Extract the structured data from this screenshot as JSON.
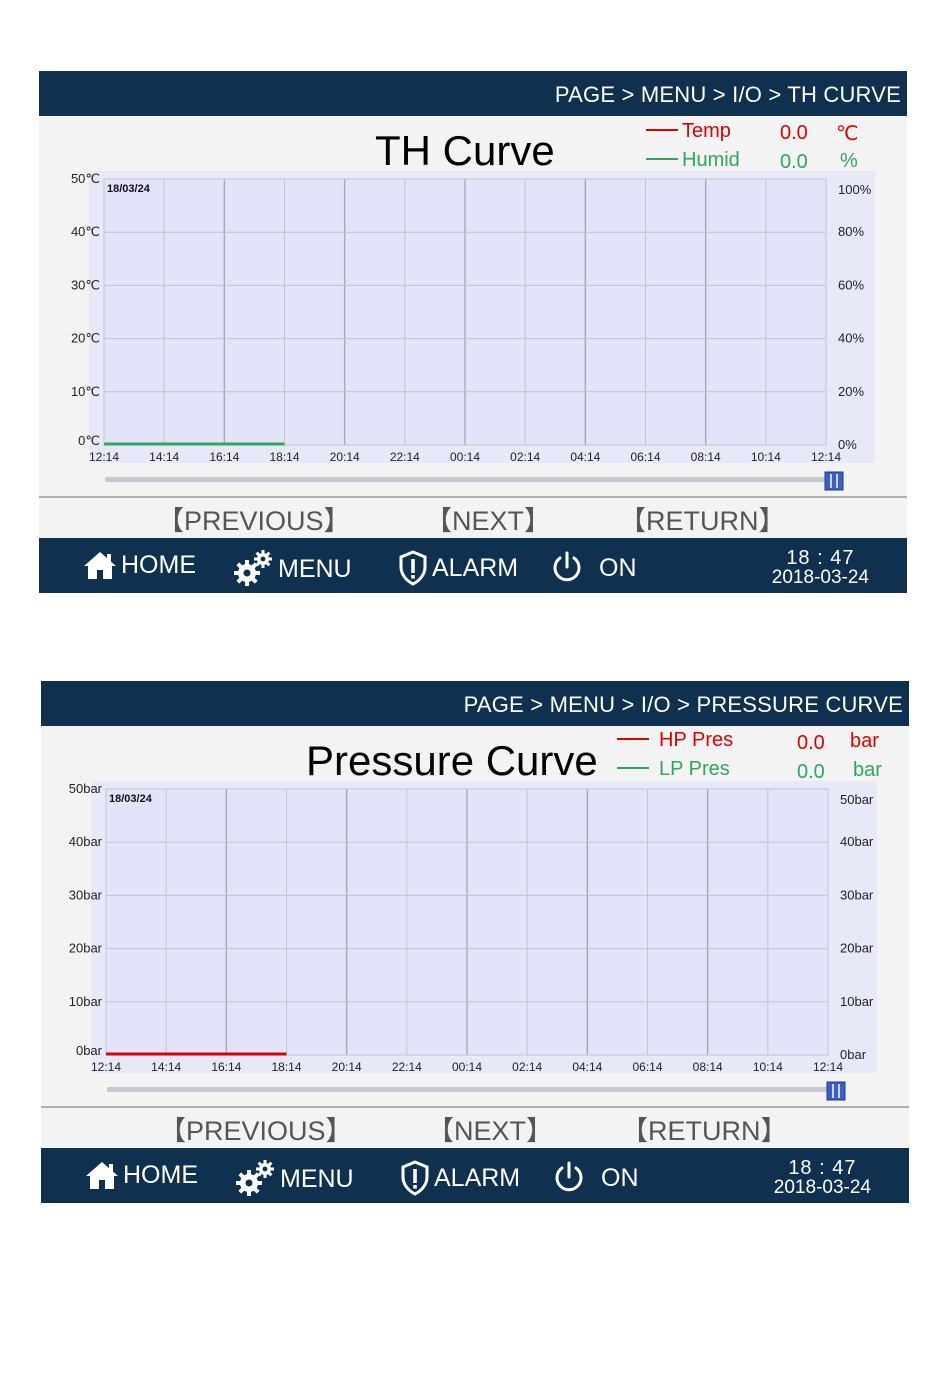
{
  "panels": [
    {
      "breadcrumb": "PAGE > MENU > I/O > TH CURVE",
      "title": "TH Curve",
      "legend": [
        {
          "name": "Temp",
          "value": "0.0",
          "unit": "℃",
          "color": "#e00000"
        },
        {
          "name": "Humid",
          "value": "0.0",
          "unit": "%",
          "color": "#2fa55e"
        }
      ],
      "chart_data": {
        "type": "line",
        "date": "18/03/24",
        "x_ticks": [
          "12:14",
          "14:14",
          "16:14",
          "18:14",
          "20:14",
          "22:14",
          "00:14",
          "02:14",
          "04:14",
          "06:14",
          "08:14",
          "10:14",
          "12:14"
        ],
        "y_left_ticks": [
          "0℃",
          "10℃",
          "20℃",
          "30℃",
          "40℃",
          "50℃"
        ],
        "y_right_ticks": [
          "0%",
          "20%",
          "40%",
          "60%",
          "80%",
          "100%"
        ],
        "ylim_left": [
          0,
          50
        ],
        "ylim_right": [
          0,
          100
        ],
        "series": [
          {
            "name": "Humid",
            "color": "#2fa55e",
            "x": [
              "12:14",
              "18:14"
            ],
            "y": [
              0,
              0
            ]
          }
        ],
        "grid": true
      },
      "nav": {
        "previous": "【PREVIOUS】",
        "next": "【NEXT】",
        "return": "【RETURN】"
      },
      "bottom": {
        "home": "HOME",
        "menu": "MENU",
        "alarm": "ALARM",
        "on": "ON",
        "time": "18 : 47",
        "date": "2018-03-24"
      }
    },
    {
      "breadcrumb": "PAGE > MENU > I/O > PRESSURE CURVE",
      "title": "Pressure Curve",
      "legend": [
        {
          "name": "HP Pres",
          "value": "0.0",
          "unit": "bar",
          "color": "#e00000"
        },
        {
          "name": "LP Pres",
          "value": "0.0",
          "unit": "bar",
          "color": "#2fa55e"
        }
      ],
      "chart_data": {
        "type": "line",
        "date": "18/03/24",
        "x_ticks": [
          "12:14",
          "14:14",
          "16:14",
          "18:14",
          "20:14",
          "22:14",
          "00:14",
          "02:14",
          "04:14",
          "06:14",
          "08:14",
          "10:14",
          "12:14"
        ],
        "y_left_ticks": [
          "0bar",
          "10bar",
          "20bar",
          "30bar",
          "40bar",
          "50bar"
        ],
        "y_right_ticks": [
          "0bar",
          "10bar",
          "20bar",
          "30bar",
          "40bar",
          "50bar"
        ],
        "ylim_left": [
          0,
          50
        ],
        "ylim_right": [
          0,
          50
        ],
        "series": [
          {
            "name": "HP Pres",
            "color": "#e00000",
            "x": [
              "12:14",
              "18:14"
            ],
            "y": [
              0,
              0
            ]
          }
        ],
        "grid": true
      },
      "nav": {
        "previous": "【PREVIOUS】",
        "next": "【NEXT】",
        "return": "【RETURN】"
      },
      "bottom": {
        "home": "HOME",
        "menu": "MENU",
        "alarm": "ALARM",
        "on": "ON",
        "time": "18 : 47",
        "date": "2018-03-24"
      }
    }
  ]
}
